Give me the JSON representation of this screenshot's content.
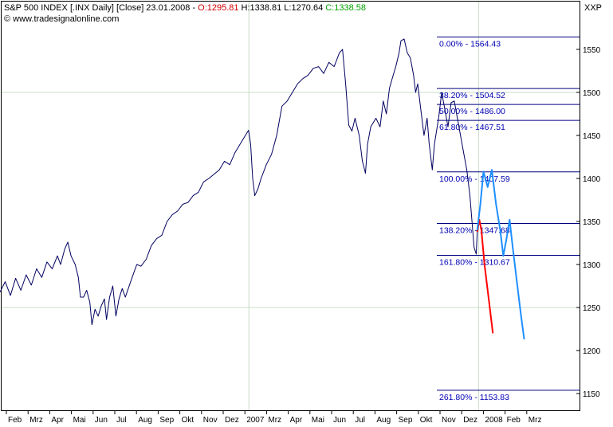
{
  "header": {
    "instrument": "S&P 500 INDEX [.INX  Daily] [Close] 23.01.2008 - ",
    "open": "O:1295.81",
    "high": "H:1338.81",
    "low": "L:1270.64",
    "close": "C:1338.58",
    "copyright": "© www.tradesignalonline.com",
    "symbol": "XXP"
  },
  "colors": {
    "price": "#000060",
    "fib": "#000080",
    "projection_red": "#ff0000",
    "projection_blue": "#1e8fff",
    "open_text": "#d00000",
    "close_text": "#00a000",
    "grid": "#c8dcc8"
  },
  "chart_data": {
    "type": "line",
    "ylim": [
      1115,
      1590
    ],
    "y_ticks": [
      1150,
      1200,
      1250,
      1300,
      1350,
      1400,
      1450,
      1500,
      1550
    ],
    "x_ticks": [
      "Feb",
      "Mrz",
      "Apr",
      "Mai",
      "Jun",
      "Jul",
      "Aug",
      "Sep",
      "Okt",
      "Nov",
      "Dez",
      "2007",
      "Mrz",
      "Apr",
      "Mai",
      "Jun",
      "Jul",
      "Aug",
      "Sep",
      "Okt",
      "Nov",
      "Dez",
      "2008",
      "Feb",
      "Mrz"
    ],
    "x_tick_pos": [
      0.5,
      1.5,
      2.5,
      3.5,
      4.5,
      5.5,
      6.5,
      7.5,
      8.5,
      9.5,
      10.5,
      11.5,
      12.5,
      13.5,
      14.5,
      15.5,
      16.5,
      17.5,
      18.5,
      19.5,
      20.5,
      21.5,
      22.5,
      23.5,
      24.5
    ],
    "fibonacci": [
      {
        "label": "0.00% - 1564.43",
        "value": 1564.43
      },
      {
        "label": "38.20% - 1504.52",
        "value": 1504.52
      },
      {
        "label": "50.00% - 1486.00",
        "value": 1486.0
      },
      {
        "label": "61.80% - 1467.51",
        "value": 1467.51
      },
      {
        "label": "100.00% - 1407.59",
        "value": 1407.59
      },
      {
        "label": "138.20% - 1347.68",
        "value": 1347.68
      },
      {
        "label": "161.80% - 1310.67",
        "value": 1310.67
      },
      {
        "label": "261.80% - 1153.83",
        "value": 1153.83
      }
    ],
    "series": [
      {
        "role": "price",
        "points": [
          [
            0.0,
            1268
          ],
          [
            0.25,
            1280
          ],
          [
            0.5,
            1264
          ],
          [
            0.75,
            1284
          ],
          [
            1.0,
            1270
          ],
          [
            1.25,
            1288
          ],
          [
            1.5,
            1276
          ],
          [
            1.75,
            1295
          ],
          [
            2.0,
            1285
          ],
          [
            2.25,
            1303
          ],
          [
            2.5,
            1295
          ],
          [
            2.75,
            1310
          ],
          [
            2.9,
            1300
          ],
          [
            3.1,
            1318
          ],
          [
            3.25,
            1326
          ],
          [
            3.4,
            1310
          ],
          [
            3.6,
            1300
          ],
          [
            3.75,
            1285
          ],
          [
            3.85,
            1262
          ],
          [
            4.0,
            1262
          ],
          [
            4.15,
            1270
          ],
          [
            4.3,
            1256
          ],
          [
            4.4,
            1230
          ],
          [
            4.55,
            1248
          ],
          [
            4.7,
            1240
          ],
          [
            4.85,
            1252
          ],
          [
            5.0,
            1260
          ],
          [
            5.1,
            1236
          ],
          [
            5.25,
            1262
          ],
          [
            5.4,
            1275
          ],
          [
            5.55,
            1240
          ],
          [
            5.7,
            1260
          ],
          [
            5.85,
            1272
          ],
          [
            6.0,
            1262
          ],
          [
            6.2,
            1276
          ],
          [
            6.4,
            1290
          ],
          [
            6.55,
            1300
          ],
          [
            6.75,
            1298
          ],
          [
            7.0,
            1306
          ],
          [
            7.25,
            1322
          ],
          [
            7.5,
            1330
          ],
          [
            7.75,
            1334
          ],
          [
            8.0,
            1350
          ],
          [
            8.25,
            1358
          ],
          [
            8.5,
            1362
          ],
          [
            8.75,
            1370
          ],
          [
            9.0,
            1372
          ],
          [
            9.25,
            1380
          ],
          [
            9.5,
            1384
          ],
          [
            9.75,
            1396
          ],
          [
            10.0,
            1400
          ],
          [
            10.25,
            1405
          ],
          [
            10.5,
            1410
          ],
          [
            10.75,
            1420
          ],
          [
            11.0,
            1416
          ],
          [
            11.25,
            1430
          ],
          [
            11.5,
            1440
          ],
          [
            11.75,
            1450
          ],
          [
            11.9,
            1456
          ],
          [
            12.0,
            1440
          ],
          [
            12.1,
            1400
          ],
          [
            12.2,
            1380
          ],
          [
            12.35,
            1388
          ],
          [
            12.5,
            1400
          ],
          [
            12.75,
            1416
          ],
          [
            13.0,
            1428
          ],
          [
            13.25,
            1450
          ],
          [
            13.5,
            1484
          ],
          [
            13.75,
            1490
          ],
          [
            14.0,
            1500
          ],
          [
            14.25,
            1510
          ],
          [
            14.5,
            1516
          ],
          [
            14.75,
            1520
          ],
          [
            15.0,
            1528
          ],
          [
            15.25,
            1530
          ],
          [
            15.5,
            1522
          ],
          [
            15.75,
            1535
          ],
          [
            16.0,
            1530
          ],
          [
            16.25,
            1546
          ],
          [
            16.4,
            1550
          ],
          [
            16.55,
            1510
          ],
          [
            16.7,
            1462
          ],
          [
            16.85,
            1455
          ],
          [
            17.0,
            1470
          ],
          [
            17.2,
            1450
          ],
          [
            17.35,
            1420
          ],
          [
            17.5,
            1406
          ],
          [
            17.6,
            1440
          ],
          [
            17.75,
            1460
          ],
          [
            18.0,
            1470
          ],
          [
            18.2,
            1460
          ],
          [
            18.35,
            1490
          ],
          [
            18.5,
            1475
          ],
          [
            18.65,
            1505
          ],
          [
            18.8,
            1518
          ],
          [
            18.95,
            1530
          ],
          [
            19.1,
            1545
          ],
          [
            19.2,
            1560
          ],
          [
            19.35,
            1562
          ],
          [
            19.5,
            1546
          ],
          [
            19.65,
            1540
          ],
          [
            19.8,
            1520
          ],
          [
            19.9,
            1500
          ],
          [
            20.0,
            1510
          ],
          [
            20.15,
            1480
          ],
          [
            20.3,
            1450
          ],
          [
            20.45,
            1470
          ],
          [
            20.55,
            1440
          ],
          [
            20.7,
            1410
          ],
          [
            20.8,
            1440
          ],
          [
            21.0,
            1470
          ],
          [
            21.15,
            1500
          ],
          [
            21.3,
            1480
          ],
          [
            21.45,
            1460
          ],
          [
            21.6,
            1488
          ],
          [
            21.75,
            1490
          ],
          [
            21.9,
            1470
          ],
          [
            22.05,
            1450
          ],
          [
            22.2,
            1430
          ],
          [
            22.35,
            1410
          ],
          [
            22.5,
            1380
          ],
          [
            22.6,
            1350
          ],
          [
            22.7,
            1320
          ],
          [
            22.8,
            1312
          ],
          [
            22.85,
            1338
          ]
        ]
      },
      {
        "role": "projection_red",
        "points": [
          [
            22.85,
            1338
          ],
          [
            22.95,
            1352
          ],
          [
            23.05,
            1340
          ],
          [
            23.2,
            1300
          ],
          [
            23.4,
            1260
          ],
          [
            23.6,
            1220
          ]
        ]
      },
      {
        "role": "projection_blue",
        "points": [
          [
            22.85,
            1340
          ],
          [
            23.0,
            1370
          ],
          [
            23.15,
            1408
          ],
          [
            23.35,
            1390
          ],
          [
            23.55,
            1410
          ],
          [
            23.75,
            1370
          ],
          [
            23.95,
            1340
          ],
          [
            24.1,
            1310
          ],
          [
            24.25,
            1330
          ],
          [
            24.4,
            1352
          ],
          [
            24.55,
            1320
          ],
          [
            24.75,
            1280
          ],
          [
            24.95,
            1240
          ],
          [
            25.1,
            1213
          ]
        ]
      }
    ]
  }
}
